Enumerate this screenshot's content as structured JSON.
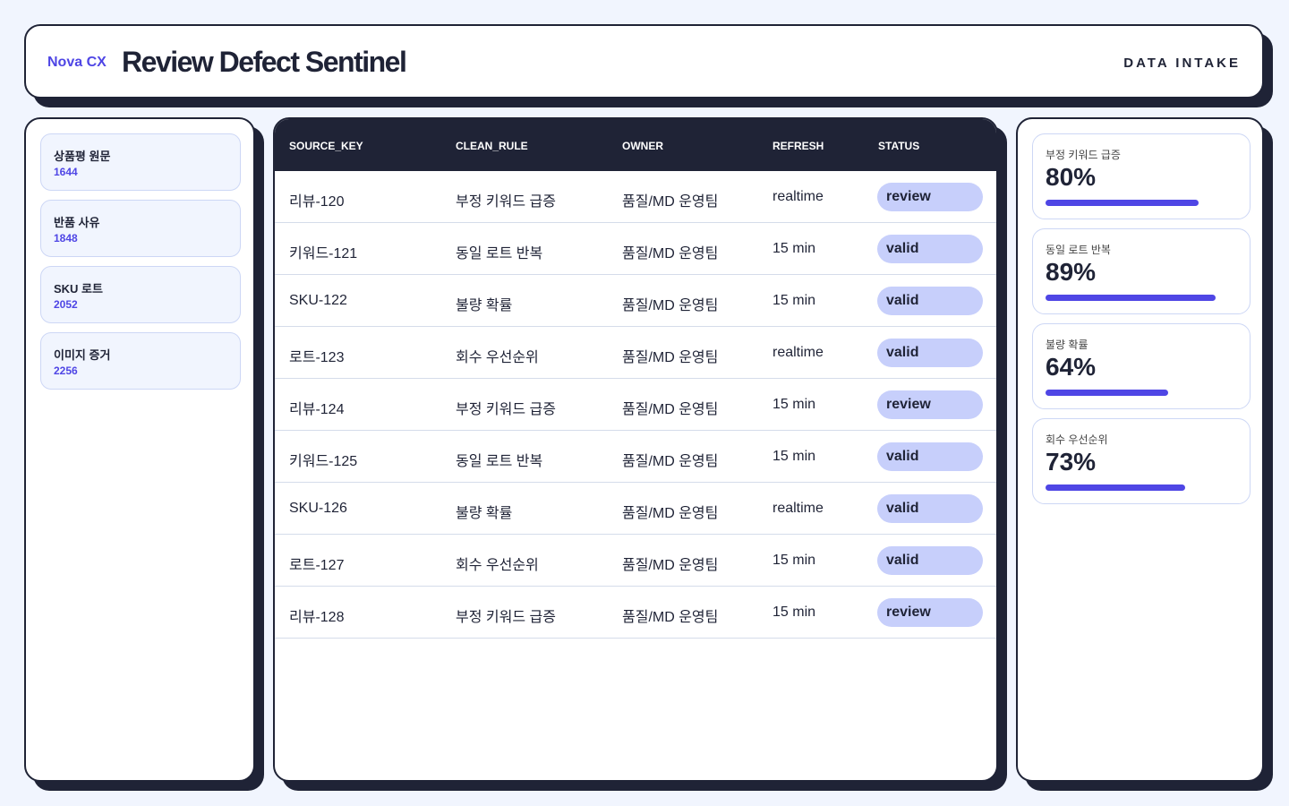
{
  "header": {
    "brand": "Nova CX",
    "title": "Review Defect Sentinel",
    "action": "DATA INTAKE"
  },
  "sidebar": [
    {
      "label": "상품평 원문",
      "count": "1644"
    },
    {
      "label": "반품 사유",
      "count": "1848"
    },
    {
      "label": "SKU 로트",
      "count": "2052"
    },
    {
      "label": "이미지 증거",
      "count": "2256"
    }
  ],
  "table": {
    "columns": [
      "SOURCE_KEY",
      "CLEAN_RULE",
      "OWNER",
      "REFRESH",
      "STATUS"
    ],
    "rows": [
      [
        "리뷰-120",
        "부정 키워드 급증",
        "품질/MD 운영팀",
        "realtime",
        "review"
      ],
      [
        "키워드-121",
        "동일 로트 반복",
        "품질/MD 운영팀",
        "15 min",
        "valid"
      ],
      [
        "SKU-122",
        "불량 확률",
        "품질/MD 운영팀",
        "15 min",
        "valid"
      ],
      [
        "로트-123",
        "회수 우선순위",
        "품질/MD 운영팀",
        "realtime",
        "valid"
      ],
      [
        "리뷰-124",
        "부정 키워드 급증",
        "품질/MD 운영팀",
        "15 min",
        "review"
      ],
      [
        "키워드-125",
        "동일 로트 반복",
        "품질/MD 운영팀",
        "15 min",
        "valid"
      ],
      [
        "SKU-126",
        "불량 확률",
        "품질/MD 운영팀",
        "realtime",
        "valid"
      ],
      [
        "로트-127",
        "회수 우선순위",
        "품질/MD 운영팀",
        "15 min",
        "valid"
      ],
      [
        "리뷰-128",
        "부정 키워드 급증",
        "품질/MD 운영팀",
        "15 min",
        "review"
      ]
    ]
  },
  "metrics": [
    {
      "label": "부정 키워드 급증",
      "value": 80,
      "value_label": "80%"
    },
    {
      "label": "동일 로트 반복",
      "value": 89,
      "value_label": "89%"
    },
    {
      "label": "불량 확률",
      "value": 64,
      "value_label": "64%"
    },
    {
      "label": "회수 우선순위",
      "value": 73,
      "value_label": "73%"
    }
  ]
}
